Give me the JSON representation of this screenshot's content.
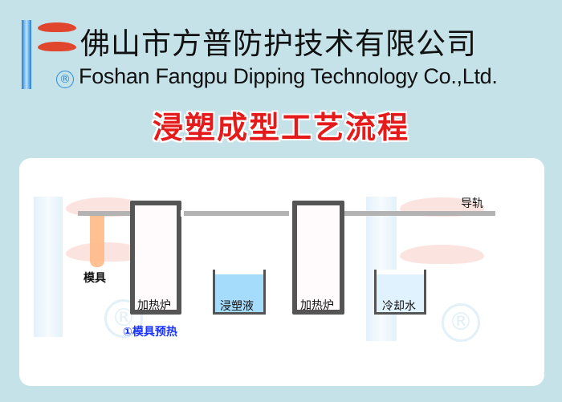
{
  "header": {
    "company_cn": "佛山市方普防护技术有限公司",
    "registered_mark": "®",
    "company_en": "Foshan Fangpu Dipping Technology Co.,Ltd.",
    "title": "浸塑成型工艺流程"
  },
  "diagram": {
    "rail_label": "导轨",
    "mold_label": "模具",
    "stations": [
      {
        "label": "加热炉"
      },
      {
        "label": "浸塑液"
      },
      {
        "label": "加热炉"
      },
      {
        "label": "冷却水"
      }
    ],
    "step_caption": "①模具预热",
    "watermark_mark": "®",
    "colors": {
      "rail": "#b3b3b3",
      "mold": "#ffb986",
      "dip_liquid": "#a5dbfb",
      "cooling_water": "#dff2fd",
      "frame": "#555555",
      "caption": "#1a33ff",
      "title": "#e51b1b"
    }
  }
}
